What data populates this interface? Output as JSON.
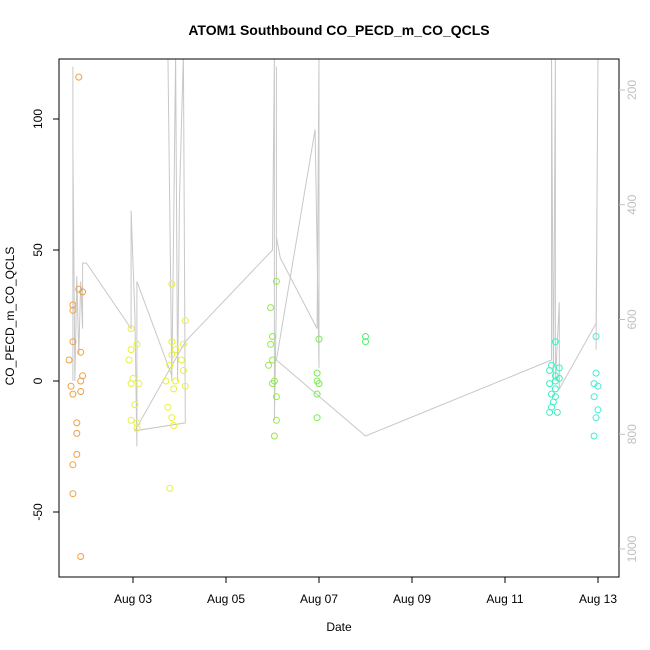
{
  "chart_data": {
    "type": "scatter",
    "title": "ATOM1 Southbound CO_PECD_m_CO_QCLS",
    "xlabel": "Date",
    "ylabel": "CO_PECD_m_CO_QCLS",
    "x_ticks": [
      "Aug 03",
      "Aug 05",
      "Aug 07",
      "Aug 09",
      "Aug 11",
      "Aug 13"
    ],
    "y_ticks": [
      "-50",
      "0",
      "50",
      "100"
    ],
    "y2_ticks": [
      "200",
      "400",
      "600",
      "800",
      "1000"
    ],
    "grid": false,
    "points": [
      {
        "x": "2014-08-01T20:00",
        "y": 116,
        "color": "#f0a040"
      },
      {
        "x": "2014-08-01T20:00",
        "y": 35,
        "color": "#f0a040"
      },
      {
        "x": "2014-08-01T22:00",
        "y": 34,
        "color": "#f0a040"
      },
      {
        "x": "2014-08-01T17:00",
        "y": 29,
        "color": "#f0a040"
      },
      {
        "x": "2014-08-01T17:00",
        "y": 27,
        "color": "#f0a040"
      },
      {
        "x": "2014-08-01T17:00",
        "y": 15,
        "color": "#f0a040"
      },
      {
        "x": "2014-08-01T21:00",
        "y": 11,
        "color": "#f0a040"
      },
      {
        "x": "2014-08-01T15:00",
        "y": 8,
        "color": "#f0a040"
      },
      {
        "x": "2014-08-01T22:00",
        "y": 2,
        "color": "#f0a040"
      },
      {
        "x": "2014-08-01T21:00",
        "y": 0,
        "color": "#f0a040"
      },
      {
        "x": "2014-08-01T16:00",
        "y": -2,
        "color": "#f0a040"
      },
      {
        "x": "2014-08-01T21:00",
        "y": -4,
        "color": "#f0a040"
      },
      {
        "x": "2014-08-01T17:00",
        "y": -5,
        "color": "#f0a040"
      },
      {
        "x": "2014-08-01T19:00",
        "y": -16,
        "color": "#f0a040"
      },
      {
        "x": "2014-08-01T19:00",
        "y": -20,
        "color": "#f0a040"
      },
      {
        "x": "2014-08-01T19:00",
        "y": -28,
        "color": "#f0a040"
      },
      {
        "x": "2014-08-01T17:00",
        "y": -32,
        "color": "#f0a040"
      },
      {
        "x": "2014-08-01T17:00",
        "y": -43,
        "color": "#f0a040"
      },
      {
        "x": "2014-08-01T21:00",
        "y": -67,
        "color": "#f0a040"
      },
      {
        "x": "2014-08-02T23:00",
        "y": 20,
        "color": "#e8f040"
      },
      {
        "x": "2014-08-03T02:00",
        "y": 14,
        "color": "#e8f040"
      },
      {
        "x": "2014-08-02T23:00",
        "y": 12,
        "color": "#e8f040"
      },
      {
        "x": "2014-08-02T22:00",
        "y": 8,
        "color": "#e8f040"
      },
      {
        "x": "2014-08-03T00:00",
        "y": 1,
        "color": "#e8f040"
      },
      {
        "x": "2014-08-02T23:00",
        "y": -1,
        "color": "#e8f040"
      },
      {
        "x": "2014-08-03T03:00",
        "y": -1,
        "color": "#e8f040"
      },
      {
        "x": "2014-08-03T01:00",
        "y": -9,
        "color": "#e8f040"
      },
      {
        "x": "2014-08-02T23:00",
        "y": -15,
        "color": "#e8f040"
      },
      {
        "x": "2014-08-03T02:00",
        "y": -16,
        "color": "#e8f040"
      },
      {
        "x": "2014-08-03T02:00",
        "y": -18,
        "color": "#e8f040"
      },
      {
        "x": "2014-08-03T20:00",
        "y": 37,
        "color": "#e8f040"
      },
      {
        "x": "2014-08-04T03:00",
        "y": 23,
        "color": "#e8f040"
      },
      {
        "x": "2014-08-03T20:00",
        "y": 15,
        "color": "#e8f040"
      },
      {
        "x": "2014-08-04T02:00",
        "y": 14,
        "color": "#e8f040"
      },
      {
        "x": "2014-08-03T22:00",
        "y": 12,
        "color": "#e8f040"
      },
      {
        "x": "2014-08-03T20:00",
        "y": 10,
        "color": "#e8f040"
      },
      {
        "x": "2014-08-04T01:00",
        "y": 8,
        "color": "#e8f040"
      },
      {
        "x": "2014-08-03T19:00",
        "y": 6,
        "color": "#e8f040"
      },
      {
        "x": "2014-08-04T02:00",
        "y": 4,
        "color": "#e8f040"
      },
      {
        "x": "2014-08-03T22:00",
        "y": 0,
        "color": "#e8f040"
      },
      {
        "x": "2014-08-03T17:00",
        "y": 0,
        "color": "#e8f040"
      },
      {
        "x": "2014-08-04T03:00",
        "y": -2,
        "color": "#e8f040"
      },
      {
        "x": "2014-08-03T21:00",
        "y": -3,
        "color": "#e8f040"
      },
      {
        "x": "2014-08-03T18:00",
        "y": -10,
        "color": "#e8f040"
      },
      {
        "x": "2014-08-03T20:00",
        "y": -14,
        "color": "#e8f040"
      },
      {
        "x": "2014-08-03T21:00",
        "y": -17,
        "color": "#e8f040"
      },
      {
        "x": "2014-08-03T19:00",
        "y": -41,
        "color": "#e8f040"
      },
      {
        "x": "2014-08-06T02:00",
        "y": 38,
        "color": "#90ee40"
      },
      {
        "x": "2014-08-05T23:00",
        "y": 28,
        "color": "#90ee40"
      },
      {
        "x": "2014-08-06T00:00",
        "y": 17,
        "color": "#90ee40"
      },
      {
        "x": "2014-08-05T23:00",
        "y": 14,
        "color": "#90ee40"
      },
      {
        "x": "2014-08-06T00:00",
        "y": 8,
        "color": "#90ee40"
      },
      {
        "x": "2014-08-05T22:00",
        "y": 6,
        "color": "#90ee40"
      },
      {
        "x": "2014-08-06T01:00",
        "y": 0,
        "color": "#90ee40"
      },
      {
        "x": "2014-08-06T00:00",
        "y": -1,
        "color": "#90ee40"
      },
      {
        "x": "2014-08-06T02:00",
        "y": -6,
        "color": "#90ee40"
      },
      {
        "x": "2014-08-06T02:00",
        "y": -15,
        "color": "#90ee40"
      },
      {
        "x": "2014-08-06T01:00",
        "y": -21,
        "color": "#90ee40"
      },
      {
        "x": "2014-08-07T00:00",
        "y": 16,
        "color": "#78ee50"
      },
      {
        "x": "2014-08-06T23:00",
        "y": 3,
        "color": "#78ee50"
      },
      {
        "x": "2014-08-06T23:00",
        "y": 0,
        "color": "#78ee50"
      },
      {
        "x": "2014-08-07T00:00",
        "y": -1,
        "color": "#78ee50"
      },
      {
        "x": "2014-08-06T23:00",
        "y": -5,
        "color": "#78ee50"
      },
      {
        "x": "2014-08-06T23:00",
        "y": -14,
        "color": "#78ee50"
      },
      {
        "x": "2014-08-08T00:00",
        "y": 17,
        "color": "#50ee70"
      },
      {
        "x": "2014-08-08T00:00",
        "y": 15,
        "color": "#50ee70"
      },
      {
        "x": "2014-08-12T02:00",
        "y": 15,
        "color": "#40eec0"
      },
      {
        "x": "2014-08-12T00:00",
        "y": 6,
        "color": "#40eec0"
      },
      {
        "x": "2014-08-12T04:00",
        "y": 5,
        "color": "#40eec0"
      },
      {
        "x": "2014-08-11T23:00",
        "y": 4,
        "color": "#40eec0"
      },
      {
        "x": "2014-08-12T02:00",
        "y": 2,
        "color": "#40eec0"
      },
      {
        "x": "2014-08-12T04:00",
        "y": 1,
        "color": "#40eec0"
      },
      {
        "x": "2014-08-12T02:00",
        "y": 0,
        "color": "#40eec0"
      },
      {
        "x": "2014-08-11T23:00",
        "y": -1,
        "color": "#40eec0"
      },
      {
        "x": "2014-08-12T02:00",
        "y": -3,
        "color": "#40eec0"
      },
      {
        "x": "2014-08-12T00:00",
        "y": -5,
        "color": "#40eec0"
      },
      {
        "x": "2014-08-12T02:00",
        "y": -6,
        "color": "#40eec0"
      },
      {
        "x": "2014-08-12T01:00",
        "y": -8,
        "color": "#40eec0"
      },
      {
        "x": "2014-08-12T00:00",
        "y": -10,
        "color": "#40eec0"
      },
      {
        "x": "2014-08-11T23:00",
        "y": -12,
        "color": "#40eec0"
      },
      {
        "x": "2014-08-12T03:00",
        "y": -12,
        "color": "#40eec0"
      },
      {
        "x": "2014-08-12T23:00",
        "y": 17,
        "color": "#40eed8"
      },
      {
        "x": "2014-08-12T23:00",
        "y": 3,
        "color": "#40eed8"
      },
      {
        "x": "2014-08-12T22:00",
        "y": -1,
        "color": "#40eed8"
      },
      {
        "x": "2014-08-13T00:00",
        "y": -2,
        "color": "#40eed8"
      },
      {
        "x": "2014-08-12T22:00",
        "y": -6,
        "color": "#40eed8"
      },
      {
        "x": "2014-08-13T00:00",
        "y": -11,
        "color": "#40eed8"
      },
      {
        "x": "2014-08-12T23:00",
        "y": -14,
        "color": "#40eed8"
      },
      {
        "x": "2014-08-12T22:00",
        "y": -21,
        "color": "#40eed8"
      }
    ],
    "track": {
      "color": "#c8c8c8",
      "points": [
        [
          "2014-08-01T17:00",
          0
        ],
        [
          "2014-08-01T17:00",
          120
        ],
        [
          "2014-08-01T17:00",
          90
        ],
        [
          "2014-08-01T18:00",
          0
        ],
        [
          "2014-08-01T19:00",
          40
        ],
        [
          "2014-08-01T20:00",
          10
        ],
        [
          "2014-08-01T21:00",
          38
        ],
        [
          "2014-08-01T22:00",
          20
        ],
        [
          "2014-08-01T22:00",
          45
        ],
        [
          "2014-08-02T00:00",
          45
        ],
        [
          "2014-08-02T23:00",
          20
        ],
        [
          "2014-08-02T23:00",
          65
        ],
        [
          "2014-08-03T01:00",
          25
        ],
        [
          "2014-08-03T02:00",
          -25
        ],
        [
          "2014-08-03T02:00",
          -19
        ],
        [
          "2014-08-03T02:00",
          38
        ],
        [
          "2014-08-03T20:00",
          2
        ],
        [
          "2014-08-03T18:00",
          125
        ],
        [
          "2014-08-03T20:00",
          0
        ],
        [
          "2014-08-03T21:00",
          60
        ],
        [
          "2014-08-03T22:00",
          125
        ],
        [
          "2014-08-03T23:00",
          0
        ],
        [
          "2014-08-04T00:00",
          70
        ],
        [
          "2014-08-04T02:00",
          125
        ],
        [
          "2014-08-04T03:00",
          -16
        ],
        [
          "2014-08-03T01:00",
          -19
        ],
        [
          "2014-08-04T03:00",
          15
        ],
        [
          "2014-08-06T00:00",
          50
        ],
        [
          "2014-08-06T01:00",
          125
        ],
        [
          "2014-08-06T01:00",
          -15
        ],
        [
          "2014-08-06T02:00",
          30
        ],
        [
          "2014-08-06T02:00",
          120
        ],
        [
          "2014-08-06T02:00",
          55
        ],
        [
          "2014-08-06T04:00",
          47
        ],
        [
          "2014-08-06T23:00",
          20
        ],
        [
          "2014-08-07T00:00",
          125
        ],
        [
          "2014-08-07T00:00",
          5
        ],
        [
          "2014-08-06T22:00",
          96
        ],
        [
          "2014-08-06T02:00",
          8
        ],
        [
          "2014-08-08T00:00",
          -21
        ],
        [
          "2014-08-12T00:00",
          8
        ],
        [
          "2014-08-12T00:00",
          125
        ],
        [
          "2014-08-12T01:00",
          0
        ],
        [
          "2014-08-12T02:00",
          125
        ],
        [
          "2014-08-12T02:00",
          0
        ],
        [
          "2014-08-12T04:00",
          30
        ],
        [
          "2014-08-12T04:00",
          -3
        ],
        [
          "2014-08-12T23:00",
          22
        ],
        [
          "2014-08-13T00:00",
          125
        ],
        [
          "2014-08-12T23:00",
          12
        ]
      ]
    }
  }
}
